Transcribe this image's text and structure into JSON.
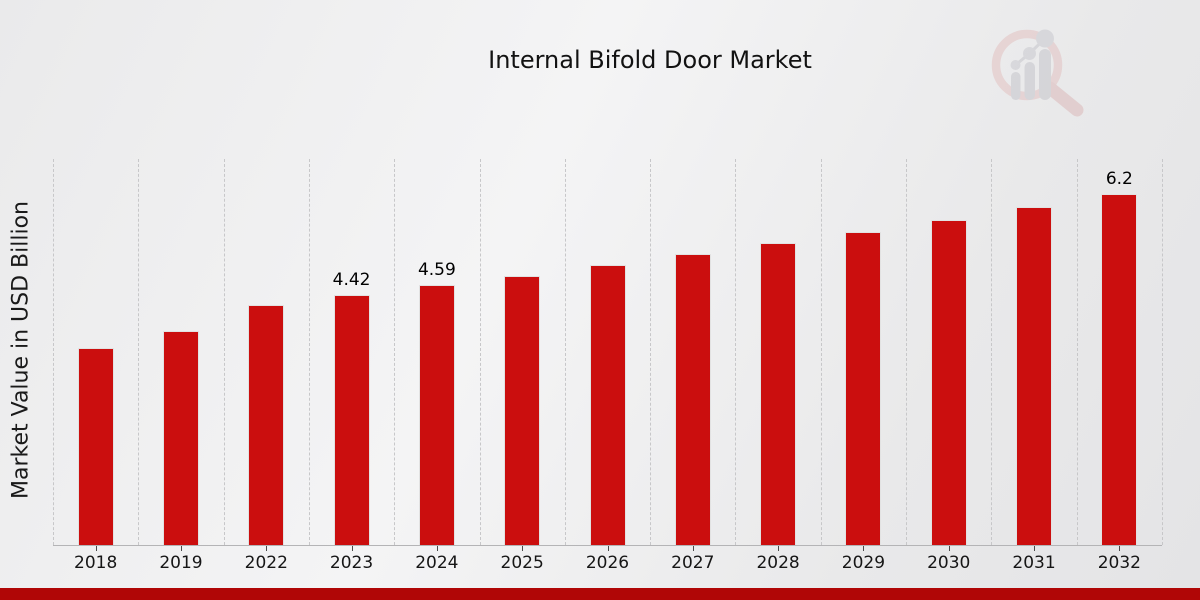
{
  "header": {
    "logo_icon": "magnifier-growth-chart-icon"
  },
  "chart_data": {
    "type": "bar",
    "title": "Internal Bifold Door Market",
    "xlabel": "",
    "ylabel": "Market Value in USD Billion",
    "categories": [
      "2018",
      "2019",
      "2022",
      "2023",
      "2024",
      "2025",
      "2026",
      "2027",
      "2028",
      "2029",
      "2030",
      "2031",
      "2032"
    ],
    "values": [
      3.48,
      3.78,
      4.24,
      4.42,
      4.59,
      4.75,
      4.95,
      5.14,
      5.34,
      5.53,
      5.74,
      5.97,
      6.2
    ],
    "bar_labels": [
      "",
      "",
      "",
      "4.42",
      "4.59",
      "",
      "",
      "",
      "",
      "",
      "",
      "",
      "6.2"
    ],
    "ylim": [
      0,
      6.82
    ],
    "grid": "vertical-dashed",
    "legend": "none",
    "bar_color": "#cb0e0e",
    "footer_color": "#b00606",
    "logo_ring_color": "#e2c2c2",
    "logo_bar_color": "#c5c5cb"
  }
}
